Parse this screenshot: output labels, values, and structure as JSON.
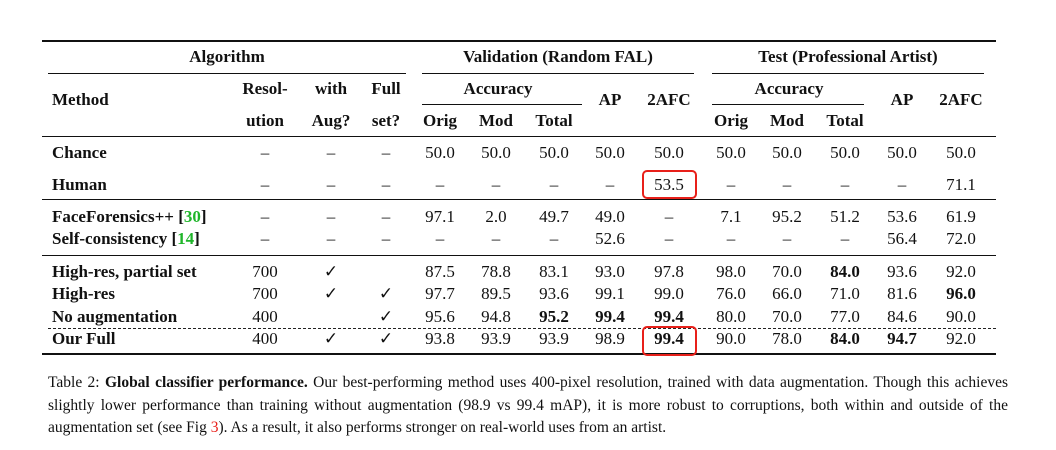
{
  "headers": {
    "algorithm": "Algorithm",
    "validation": "Validation (Random FAL)",
    "test": "Test (Professional Artist)",
    "method": "Method",
    "resolution": [
      "Resol-",
      "ution"
    ],
    "with_aug": [
      "with",
      "Aug?"
    ],
    "full_set": [
      "Full",
      "set?"
    ],
    "accuracy": "Accuracy",
    "ap": "AP",
    "twoafc": "2AFC",
    "orig": "Orig",
    "mod": "Mod",
    "total": "Total"
  },
  "rows": [
    {
      "method": "Chance",
      "cells": [
        "–",
        "–",
        "–",
        "50.0",
        "50.0",
        "50.0",
        "50.0",
        "50.0",
        "50.0",
        "50.0",
        "50.0",
        "50.0",
        "50.0"
      ],
      "bold": []
    },
    {
      "method": "Human",
      "cells": [
        "–",
        "–",
        "–",
        "–",
        "–",
        "–",
        "–",
        "53.5",
        "–",
        "–",
        "–",
        "–",
        "71.1"
      ],
      "bold": []
    },
    {
      "method": "FaceForensics++",
      "ref": "30",
      "cells": [
        "–",
        "–",
        "–",
        "97.1",
        "2.0",
        "49.7",
        "49.0",
        "–",
        "7.1",
        "95.2",
        "51.2",
        "53.6",
        "61.9"
      ],
      "bold": []
    },
    {
      "method": "Self-consistency",
      "ref": "14",
      "cells": [
        "–",
        "–",
        "–",
        "–",
        "–",
        "–",
        "52.6",
        "–",
        "–",
        "–",
        "–",
        "56.4",
        "72.0"
      ],
      "bold": []
    },
    {
      "method": "High-res, partial set",
      "cells": [
        "700",
        "✓",
        "",
        "87.5",
        "78.8",
        "83.1",
        "93.0",
        "97.8",
        "98.0",
        "70.0",
        "84.0",
        "93.6",
        "92.0"
      ],
      "bold": [
        10
      ]
    },
    {
      "method": "High-res",
      "cells": [
        "700",
        "✓",
        "✓",
        "97.7",
        "89.5",
        "93.6",
        "99.1",
        "99.0",
        "76.0",
        "66.0",
        "71.0",
        "81.6",
        "96.0"
      ],
      "bold": [
        12
      ]
    },
    {
      "method": "No augmentation",
      "cells": [
        "400",
        "",
        "✓",
        "95.6",
        "94.8",
        "95.2",
        "99.4",
        "99.4",
        "80.0",
        "70.0",
        "77.0",
        "84.6",
        "90.0"
      ],
      "bold": [
        5,
        6,
        7
      ]
    },
    {
      "method": "Our Full",
      "cells": [
        "400",
        "✓",
        "✓",
        "93.8",
        "93.9",
        "93.9",
        "98.9",
        "99.4",
        "90.0",
        "78.0",
        "84.0",
        "94.7",
        "92.0"
      ],
      "bold": [
        7,
        10,
        11
      ]
    }
  ],
  "caption": {
    "label": "Table 2:",
    "title": "Global classifier performance.",
    "text_before_ref": "Our best-performing method uses 400-pixel resolution, trained with data augmentation. Though this achieves slightly lower performance than training without augmentation (98.9 vs 99.4 mAP), it is more robust to corruptions, both within and outside of the augmentation set (see Fig",
    "fig_ref": "3",
    "text_after_ref": "). As a result, it also performs stronger on real-world uses from an artist."
  },
  "highlight_color": "#e8201a",
  "ref_color": "#1fb52a"
}
